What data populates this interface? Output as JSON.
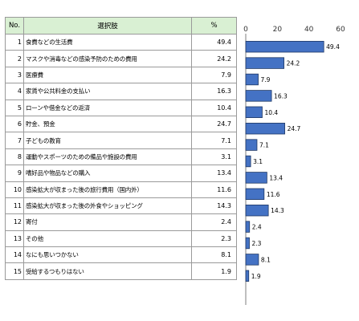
{
  "table": {
    "headers": {
      "no": "No.",
      "choice": "選択肢",
      "pct": "%"
    },
    "rows": [
      {
        "no": "1",
        "choice": "食費などの生活費",
        "pct": "49.4"
      },
      {
        "no": "2",
        "choice": "マスクや消毒などの感染予防のための費用",
        "pct": "24.2"
      },
      {
        "no": "3",
        "choice": "医療費",
        "pct": "7.9"
      },
      {
        "no": "4",
        "choice": "家賃や公共料金の支払い",
        "pct": "16.3"
      },
      {
        "no": "5",
        "choice": "ローンや借金などの返済",
        "pct": "10.4"
      },
      {
        "no": "6",
        "choice": "貯金、預金",
        "pct": "24.7"
      },
      {
        "no": "7",
        "choice": "子どもの教育",
        "pct": "7.1"
      },
      {
        "no": "8",
        "choice": "運動やスポーツのための備品や施設の費用",
        "pct": "3.1"
      },
      {
        "no": "9",
        "choice": "嗜好品や物品などの購入",
        "pct": "13.4"
      },
      {
        "no": "10",
        "choice": "感染拡大が収まった後の旅行費用（国内外）",
        "pct": "11.6"
      },
      {
        "no": "11",
        "choice": "感染拡大が収まった後の外食やショッピング",
        "pct": "14.3"
      },
      {
        "no": "12",
        "choice": "寄付",
        "pct": "2.4"
      },
      {
        "no": "13",
        "choice": "その他",
        "pct": "2.3"
      },
      {
        "no": "14",
        "choice": "なにも思いつかない",
        "pct": "8.1"
      },
      {
        "no": "15",
        "choice": "受給するつもりはない",
        "pct": "1.9"
      }
    ]
  },
  "chart_data": {
    "type": "bar",
    "orientation": "horizontal",
    "categories": [
      "1",
      "2",
      "3",
      "4",
      "5",
      "6",
      "7",
      "8",
      "9",
      "10",
      "11",
      "12",
      "13",
      "14",
      "15"
    ],
    "values": [
      49.4,
      24.2,
      7.9,
      16.3,
      10.4,
      24.7,
      7.1,
      3.1,
      13.4,
      11.6,
      14.3,
      2.4,
      2.3,
      8.1,
      1.9
    ],
    "xlim": [
      0,
      60
    ],
    "xticks": [
      0,
      20,
      40,
      60
    ],
    "grid": false,
    "legend": "none",
    "bar_color": "#4472c4",
    "bar_edge_color": "#1f3864"
  }
}
